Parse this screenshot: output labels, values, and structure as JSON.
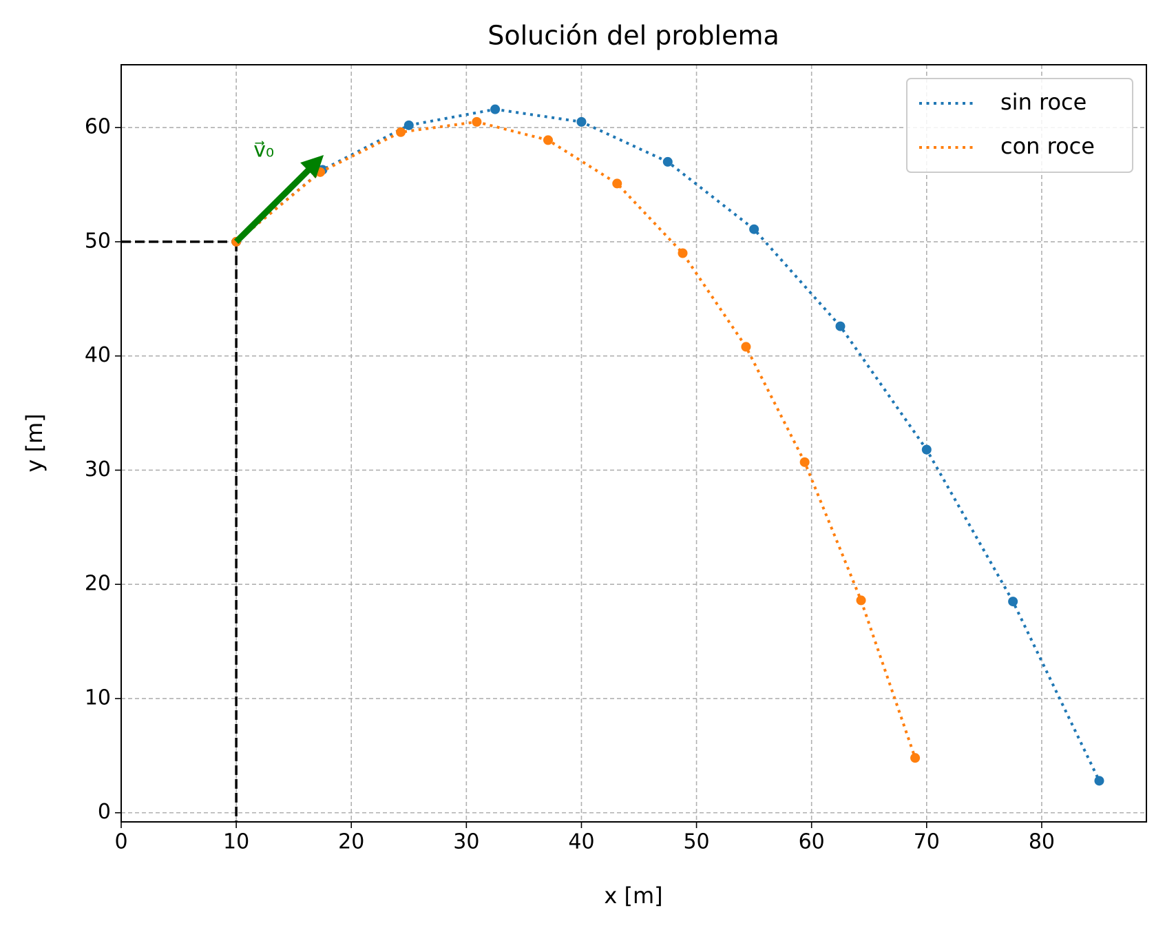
{
  "chart_data": {
    "type": "line",
    "title": "Solución del problema",
    "x_label": "x [m]",
    "y_label": "y [m]",
    "xlim": [
      0,
      89.1
    ],
    "ylim": [
      -0.8,
      65.5
    ],
    "xticks": [
      0,
      10,
      20,
      30,
      40,
      50,
      60,
      70,
      80
    ],
    "yticks": [
      0,
      10,
      20,
      30,
      40,
      50,
      60
    ],
    "grid": true,
    "legend": "upper right",
    "series": [
      {
        "name": "sin roce",
        "color": "#1f77b4",
        "x": [
          10,
          17.5,
          25,
          32.5,
          40,
          47.5,
          55,
          62.5,
          70,
          77.5,
          85
        ],
        "values": [
          50,
          56.3,
          60.2,
          61.6,
          60.5,
          57.0,
          51.1,
          42.6,
          31.8,
          18.5,
          2.8
        ]
      },
      {
        "name": "con roce",
        "color": "#ff7f0e",
        "x": [
          10,
          17.3,
          24.3,
          30.9,
          37.1,
          43.1,
          48.8,
          54.3,
          59.4,
          64.3,
          69.0
        ],
        "values": [
          50,
          56.1,
          59.6,
          60.5,
          58.9,
          55.1,
          49.0,
          40.8,
          30.7,
          18.6,
          4.8
        ]
      }
    ],
    "annotation": {
      "text": "v⃗₀",
      "color": "#008000",
      "x": [
        10,
        17.6
      ],
      "y": [
        50,
        57.6
      ]
    }
  }
}
